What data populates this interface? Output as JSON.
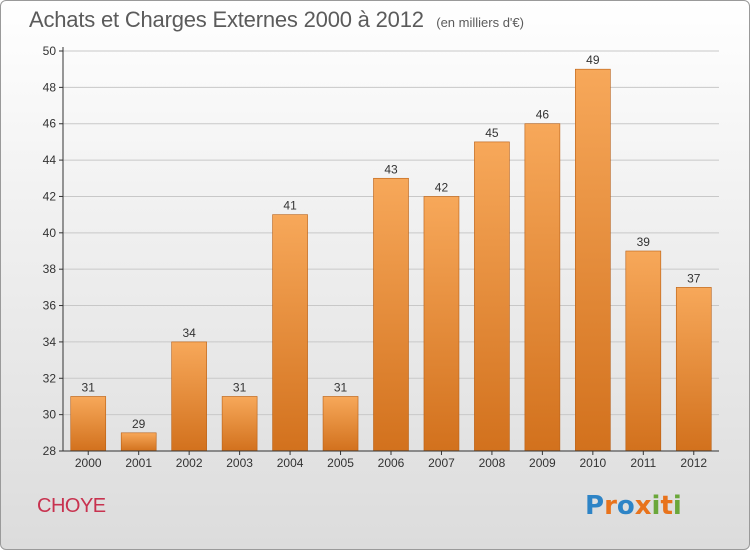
{
  "header": {
    "title": "Achats et Charges Externes 2000 à 2012",
    "subtitle": "(en milliers d'€)"
  },
  "commune": "CHOYE",
  "logo": {
    "text": "Proxiti",
    "colors": [
      "#2e84c6",
      "#e8731c",
      "#2e84c6",
      "#e8731c",
      "#6aa73a",
      "#e8731c",
      "#6aa73a"
    ]
  },
  "colors": {
    "bar_top": "#f7a85a",
    "bar_bottom": "#d2711d",
    "bar_stroke": "#b85f15",
    "axis": "#333333",
    "grid": "#c8c8c8",
    "text": "#333333"
  },
  "chart_data": {
    "type": "bar",
    "categories": [
      "2000",
      "2001",
      "2002",
      "2003",
      "2004",
      "2005",
      "2006",
      "2007",
      "2008",
      "2009",
      "2010",
      "2011",
      "2012"
    ],
    "values": [
      31,
      29,
      34,
      31,
      41,
      31,
      43,
      42,
      45,
      46,
      49,
      39,
      37
    ],
    "data_labels": [
      "31",
      "29",
      "34",
      "31",
      "41",
      "31",
      "43",
      "42",
      "45",
      "46",
      "49",
      "39",
      "37"
    ],
    "yticks": [
      28,
      30,
      32,
      34,
      36,
      38,
      40,
      42,
      44,
      46,
      48,
      50
    ],
    "ylim": [
      28,
      50
    ],
    "grid": true,
    "legend": "none"
  }
}
